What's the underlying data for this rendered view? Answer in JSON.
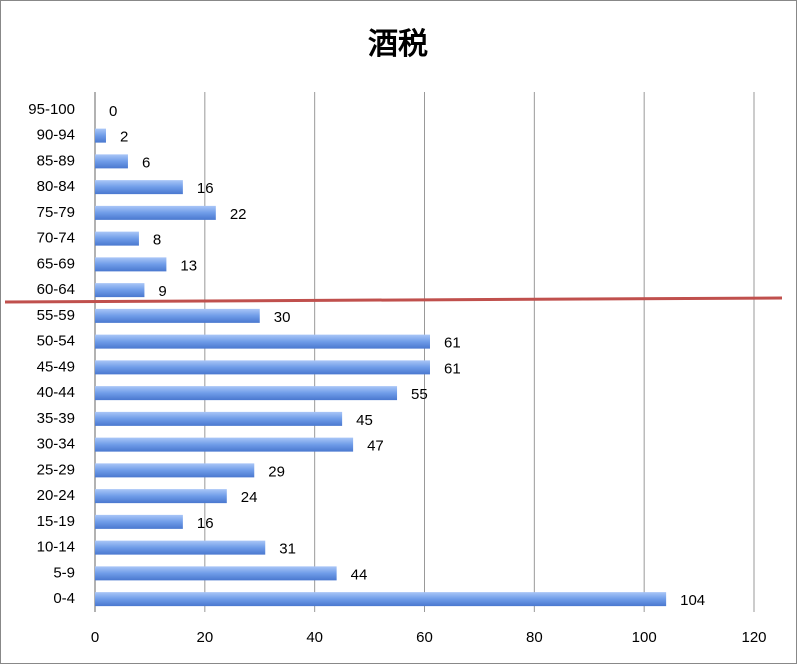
{
  "chart_data": {
    "type": "hbar",
    "title": "酒税",
    "categories": [
      "0-4",
      "5-9",
      "10-14",
      "15-19",
      "20-24",
      "25-29",
      "30-34",
      "35-39",
      "40-44",
      "45-49",
      "50-54",
      "55-59",
      "60-64",
      "65-69",
      "70-74",
      "75-79",
      "80-84",
      "85-89",
      "90-94",
      "95-100"
    ],
    "values": [
      104,
      44,
      31,
      16,
      24,
      29,
      47,
      45,
      55,
      61,
      61,
      30,
      9,
      13,
      8,
      22,
      16,
      6,
      2,
      0
    ],
    "color": "#6f9ce8",
    "xlim": [
      0,
      120
    ],
    "xticks": [
      0,
      20,
      40,
      60,
      80,
      100,
      120
    ],
    "grid": true
  }
}
